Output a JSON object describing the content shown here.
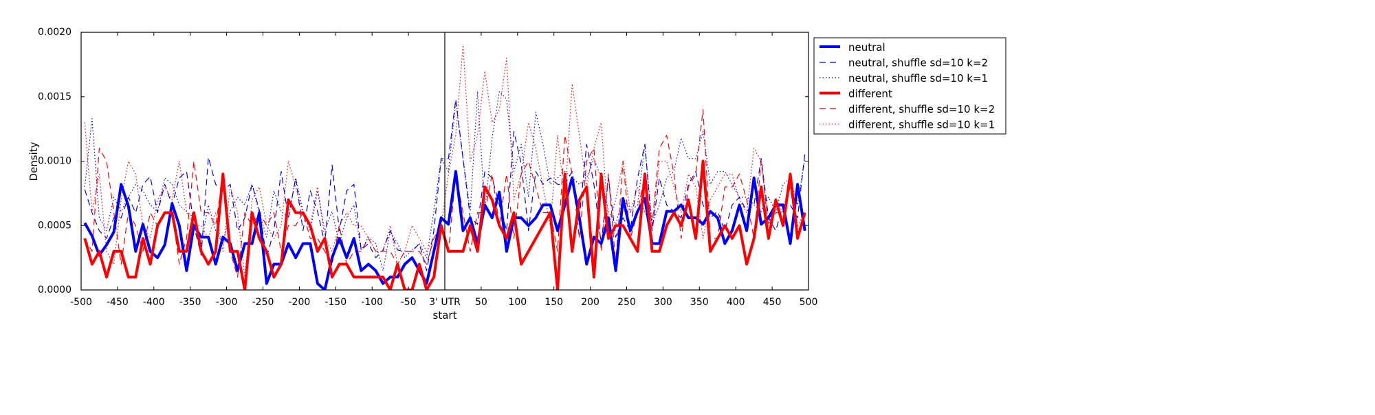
{
  "chart_data": {
    "type": "line",
    "title": "",
    "xlabel": "start",
    "ylabel": "Density",
    "xlim": [
      -500,
      500
    ],
    "ylim": [
      0,
      0.002
    ],
    "grid": false,
    "legend_position": "outside-top-right",
    "vertical_marker": {
      "x": 0,
      "label": "3' UTR"
    },
    "xticks": [
      {
        "value": -500,
        "label": "-500"
      },
      {
        "value": -450,
        "label": "-450"
      },
      {
        "value": -400,
        "label": "-400"
      },
      {
        "value": -350,
        "label": "-350"
      },
      {
        "value": -300,
        "label": "-300"
      },
      {
        "value": -250,
        "label": "-250"
      },
      {
        "value": -200,
        "label": "-200"
      },
      {
        "value": -150,
        "label": "-150"
      },
      {
        "value": -100,
        "label": "-100"
      },
      {
        "value": -50,
        "label": "-50"
      },
      {
        "value": 0,
        "label": "3' UTR"
      },
      {
        "value": 50,
        "label": "50"
      },
      {
        "value": 100,
        "label": "100"
      },
      {
        "value": 150,
        "label": "150"
      },
      {
        "value": 200,
        "label": "200"
      },
      {
        "value": 250,
        "label": "250"
      },
      {
        "value": 300,
        "label": "300"
      },
      {
        "value": 350,
        "label": "350"
      },
      {
        "value": 400,
        "label": "400"
      },
      {
        "value": 450,
        "label": "450"
      },
      {
        "value": 500,
        "label": "500"
      }
    ],
    "yticks": [
      {
        "value": 0,
        "label": "0.0000"
      },
      {
        "value": 0.0005,
        "label": "0.0005"
      },
      {
        "value": 0.001,
        "label": "0.0010"
      },
      {
        "value": 0.0015,
        "label": "0.0015"
      },
      {
        "value": 0.002,
        "label": "0.0020"
      }
    ],
    "x_start": -495,
    "x_step": 10,
    "series": [
      {
        "name": "neutral",
        "color": "#0000ff",
        "style": "solid",
        "values": [
          0.00052,
          0.00042,
          0.00027,
          0.00035,
          0.00045,
          0.00082,
          0.00065,
          0.0003,
          0.00051,
          0.0003,
          0.00025,
          0.00035,
          0.00067,
          0.0005,
          0.00015,
          0.0005,
          0.00041,
          0.00041,
          0.0002,
          0.00041,
          0.00036,
          0.00015,
          0.00036,
          0.00036,
          0.0006,
          5e-05,
          0.0002,
          0.0002,
          0.00036,
          0.00025,
          0.00036,
          0.00036,
          5e-05,
          0,
          0.00025,
          0.0004,
          0.00025,
          0.0004,
          0.00015,
          0.0002,
          0.00015,
          5e-05,
          0.0001,
          0.0001,
          0.0002,
          0.00025,
          0.00015,
          5e-05,
          0.0003,
          0.00056,
          0.00051,
          0.00092,
          0.00046,
          0.00056,
          0.00036,
          0.00066,
          0.00056,
          0.00076,
          0.0003,
          0.00056,
          0.00056,
          0.0005,
          0.00056,
          0.00066,
          0.00066,
          0.00046,
          0.00066,
          0.00087,
          0.00056,
          0.0002,
          0.00041,
          0.00036,
          0.00056,
          0.00015,
          0.00071,
          0.00046,
          0.00061,
          0.00071,
          0.00036,
          0.00036,
          0.00061,
          0.00061,
          0.00066,
          0.00056,
          0.00056,
          0.00051,
          0.00061,
          0.00056,
          0.00036,
          0.00046,
          0.00066,
          0.00046,
          0.00087,
          0.00051,
          0.00056,
          0.00066,
          0.00066,
          0.00036,
          0.00082,
          0.00046
        ]
      },
      {
        "name": "neutral, shuffle sd=10 k=2",
        "color": "#0000ff",
        "style": "dashed",
        "values": [
          0.00078,
          0.0006,
          0.00046,
          0.0004,
          0.00056,
          0.00056,
          0.00072,
          0.0006,
          0.00082,
          0.00088,
          0.0006,
          0.00082,
          0.00066,
          0.00087,
          0.00092,
          0.0005,
          0.00027,
          0.00103,
          0.00082,
          0.00077,
          0.00082,
          0.00046,
          0.00056,
          0.00082,
          0.00062,
          0.00025,
          0.00046,
          0.00092,
          0.00056,
          0.00087,
          0.00046,
          0.00077,
          0.00061,
          0.00036,
          0.00097,
          0.00046,
          0.00077,
          0.00082,
          0.00031,
          0.00036,
          0.00025,
          0.00031,
          0.00046,
          0.00031,
          0.0003,
          0.0003,
          0.00036,
          0.00015,
          0.00046,
          0.00102,
          0.00102,
          0.00148,
          0.00102,
          0.00056,
          0.00051,
          0.00092,
          0.00087,
          0.00066,
          0.00046,
          0.00123,
          0.00098,
          0.00046,
          0.00092,
          0.00082,
          0.00087,
          0.00082,
          0.00082,
          0.00092,
          0.00056,
          0.00113,
          0.00082,
          0.00036,
          0.00087,
          0.00041,
          0.00056,
          0.00046,
          0.00087,
          0.00113,
          0.00046,
          0.00087,
          0.00066,
          0.00061,
          0.00056,
          0.00082,
          0.00092,
          0.00066,
          0.00056,
          0.00061,
          0.00046,
          0.00066,
          0.00072,
          0.00061,
          0.00066,
          0.00102,
          0.00056,
          0.00046,
          0.00066,
          0.00066,
          0.00056,
          0.00106
        ]
      },
      {
        "name": "neutral, shuffle sd=10 k=1",
        "color": "#0000ff",
        "style": "dotted",
        "values": [
          0.0008,
          0.00133,
          0.00056,
          0.00046,
          0.00072,
          0.00061,
          0.00072,
          0.00082,
          0.00077,
          0.00066,
          0.00061,
          0.00087,
          0.00082,
          0.00066,
          0.00061,
          0.00056,
          0.00036,
          0.00066,
          0.00046,
          0.00036,
          0.00061,
          0.00072,
          0.00066,
          0.00082,
          0.0006,
          0.00041,
          0.00077,
          0.00061,
          0.00056,
          0.00087,
          0.00061,
          0.00046,
          0.00077,
          0.00046,
          0.00061,
          0.00036,
          0.00056,
          0.00066,
          0.00031,
          0.00041,
          0.00036,
          0.00015,
          0.00046,
          0.00036,
          0.00025,
          0.00031,
          0.00036,
          0.00025,
          0.00061,
          0.00102,
          0.00092,
          0.00146,
          0.00102,
          0.00061,
          0.00154,
          0.00061,
          0.00118,
          0.00154,
          0.00148,
          0.00092,
          0.00113,
          0.00072,
          0.00138,
          0.00113,
          0.00082,
          0.00087,
          0.00092,
          0.00087,
          0.00082,
          0.00087,
          0.00102,
          0.00087,
          0.00061,
          0.00051,
          0.00072,
          0.00061,
          0.00066,
          0.00113,
          0.00051,
          0.00066,
          0.00087,
          0.00092,
          0.00118,
          0.00102,
          0.00102,
          0.00123,
          0.00082,
          0.00092,
          0.00092,
          0.00082,
          0.00072,
          0.00072,
          0.00066,
          0.00061,
          0.00072,
          0.00061,
          0.00082,
          0.00087,
          0.00066,
          0.00102
        ]
      },
      {
        "name": "different",
        "color": "#ff0000",
        "style": "solid",
        "values": [
          0.0004,
          0.0002,
          0.0003,
          0.0001,
          0.0003,
          0.0003,
          0.0001,
          0.0001,
          0.0004,
          0.0002,
          0.0005,
          0.0006,
          0.0006,
          0.0003,
          0.0003,
          0.0006,
          0.0003,
          0.0002,
          0.0003,
          0.0009,
          0.0003,
          0.0003,
          0,
          0.0006,
          0.0004,
          0.0003,
          0.0001,
          0.0002,
          0.0007,
          0.0006,
          0.0006,
          0.0005,
          0.0003,
          0.0004,
          0.0001,
          0.0002,
          0.0002,
          0.0001,
          0.0001,
          0.0001,
          0.0001,
          0.0001,
          0,
          0.0002,
          0,
          0,
          0.0002,
          0,
          0.0001,
          0.0005,
          0.0003,
          0.0003,
          0.0003,
          0.0005,
          0.0003,
          0.0008,
          0.0007,
          0.0005,
          0.0004,
          0.0006,
          0.0002,
          0.0003,
          0.0004,
          0.0005,
          0.0006,
          0,
          0.0009,
          0.0003,
          0.0007,
          0.0008,
          0.0001,
          0.0009,
          0.0004,
          0.0005,
          0.0005,
          0.0004,
          0.0003,
          0.0009,
          0.0003,
          0.0003,
          0.0005,
          0.0006,
          0.0005,
          0.0007,
          0.0004,
          0.001,
          0.0003,
          0.0004,
          0.0005,
          0.0004,
          0.0005,
          0.0002,
          0.0004,
          0.0008,
          0.0004,
          0.0007,
          0.0005,
          0.0009,
          0.0004,
          0.0006
        ]
      },
      {
        "name": "different, shuffle sd=10 k=2",
        "color": "#ff0000",
        "style": "dashed",
        "values": [
          0.0004,
          0.0003,
          0.0011,
          0.001,
          0.0006,
          0.0002,
          0.0006,
          0.0005,
          0.0003,
          0.0006,
          0.0005,
          0.0006,
          0.0006,
          0.0002,
          0.0004,
          0.001,
          0.0006,
          0.0006,
          0.0005,
          0.0009,
          0.0003,
          0.0001,
          0.0006,
          0.0005,
          0.0006,
          0.0005,
          0.0006,
          0.0003,
          0.0005,
          0.0005,
          0.0006,
          0.0004,
          0.0004,
          0.0003,
          0.0002,
          0.0005,
          0.0002,
          0.0003,
          0.0003,
          0.0004,
          0.0003,
          0.0003,
          0.0003,
          0.0002,
          0.0003,
          0.0003,
          0.0003,
          0.0002,
          0.0004,
          0.0005,
          0.0003,
          0.0009,
          0.0006,
          0.0003,
          0.0006,
          0.0006,
          0.0009,
          0.0005,
          0.0009,
          0.0004,
          0.0009,
          0.001,
          0.0008,
          0.0006,
          0.0006,
          0.0003,
          0.0012,
          0.0009,
          0.0004,
          0.001,
          0.0011,
          0.0003,
          0.0009,
          0.0002,
          0.001,
          0.0004,
          0.0006,
          0.0009,
          0.0005,
          0.0011,
          0.0012,
          0.0009,
          0.0004,
          0.0008,
          0.0009,
          0.0014,
          0.0004,
          0.0004,
          0.0008,
          0.0008,
          0.0009,
          0.0007,
          0.0004,
          0.001,
          0.0005,
          0.0006,
          0.0006,
          0.0008,
          0.0004,
          0.0006
        ]
      },
      {
        "name": "different, shuffle sd=10 k=1",
        "color": "#ff0000",
        "style": "dotted",
        "values": [
          0.0013,
          0.0006,
          0.0009,
          0.0003,
          0.0002,
          0.0007,
          0.001,
          0.0009,
          0.0005,
          0.0004,
          0.0007,
          0.0008,
          0.0007,
          0.001,
          0.0006,
          0.0005,
          0.0005,
          0.0004,
          0.0006,
          0.0003,
          0.0008,
          0.0006,
          0.0001,
          0.0007,
          0.0008,
          0.0005,
          0.0004,
          0.0005,
          0.001,
          0.0008,
          0.0006,
          0.0005,
          0.0008,
          0.0004,
          0.0003,
          0.0005,
          0.0006,
          0.0005,
          0.0005,
          0.0004,
          0.0003,
          0.0003,
          0.0005,
          0.0002,
          0.0003,
          0.0005,
          0.0004,
          0.0003,
          0.0004,
          0.0005,
          0.0009,
          0.0012,
          0.0019,
          0.001,
          0.0012,
          0.0017,
          0.0013,
          0.0014,
          0.0018,
          0.0007,
          0.0009,
          0.0013,
          0.0011,
          0.0008,
          0.0005,
          0.0012,
          0.0007,
          0.0016,
          0.0012,
          0.0008,
          0.0011,
          0.0013,
          0.0005,
          0.0007,
          0.001,
          0.0006,
          0.0008,
          0.0006,
          0.0005,
          0.001,
          0.001,
          0.0008,
          0.0006,
          0.0009,
          0.0008,
          0.0004,
          0.0007,
          0.0008,
          0.0009,
          0.0009,
          0.0007,
          0.0006,
          0.0011,
          0.001,
          0.0005,
          0.0007,
          0.0006,
          0.0009,
          0.0005,
          0.0006
        ]
      }
    ]
  }
}
